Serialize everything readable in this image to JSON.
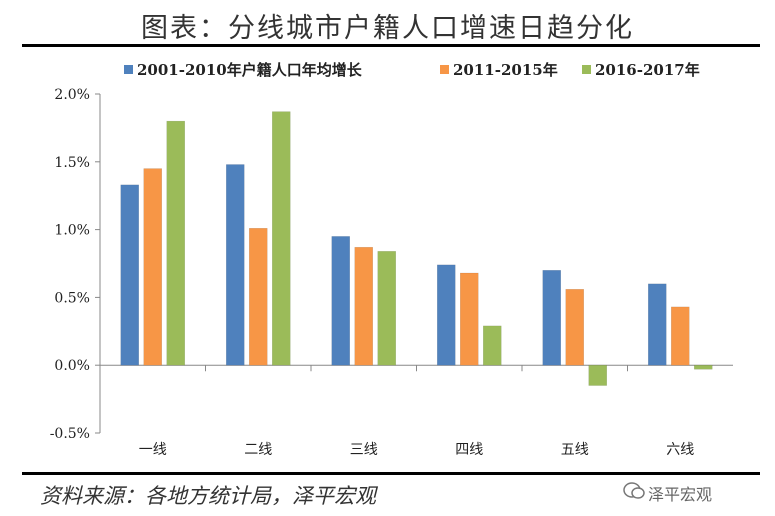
{
  "title": "图表：分线城市户籍人口增速日趋分化",
  "source": "资料来源：各地方统计局，泽平宏观",
  "watermark": "泽平宏观",
  "chart_data": {
    "type": "bar",
    "categories": [
      "一线",
      "二线",
      "三线",
      "四线",
      "五线",
      "六线"
    ],
    "series": [
      {
        "name": "2001-2010年户籍人口年均增长",
        "color": "#4F81BD",
        "values": [
          1.33,
          1.48,
          0.95,
          0.74,
          0.7,
          0.6
        ]
      },
      {
        "name": "2011-2015年",
        "color": "#F79646",
        "values": [
          1.45,
          1.01,
          0.87,
          0.68,
          0.56,
          0.43
        ]
      },
      {
        "name": "2016-2017年",
        "color": "#9BBB59",
        "values": [
          1.8,
          1.87,
          0.84,
          0.29,
          -0.15,
          -0.03
        ]
      }
    ],
    "y_ticks": [
      "2.0%",
      "1.5%",
      "1.0%",
      "0.5%",
      "0.0%",
      "-0.5%"
    ],
    "ylim": [
      -0.5,
      2.0
    ],
    "legend_position": "top"
  }
}
